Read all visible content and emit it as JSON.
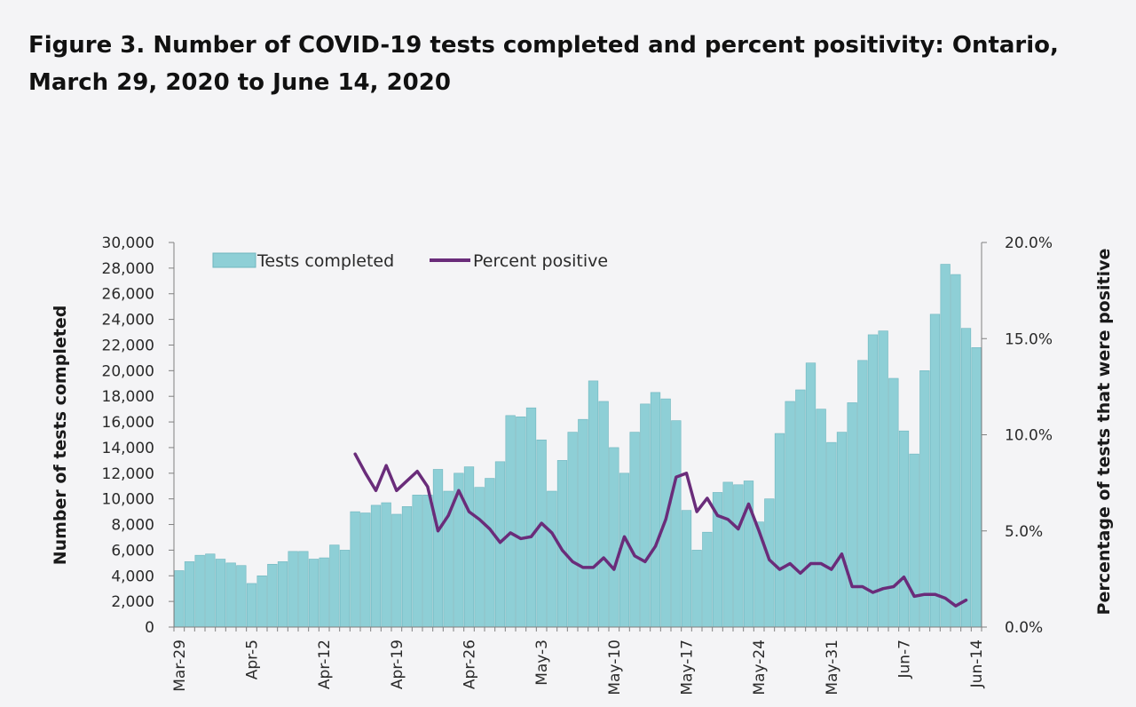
{
  "figure": {
    "title": "Figure 3. Number of COVID-19 tests completed and percent positivity: Ontario, March 29, 2020 to June 14, 2020"
  },
  "colors": {
    "bar_fill": "#8ecfd6",
    "bar_stroke": "#6fb6bf",
    "line": "#6a2c7a",
    "axis": "#808080",
    "background": "#f4f4f6"
  },
  "chart_data": {
    "type": "bar",
    "title": "Figure 3. Number of COVID-19 tests completed and percent positivity: Ontario, March 29, 2020 to June 14, 2020",
    "xlabel": "",
    "ylabel": "Number of tests completed",
    "y2label": "Percentage of tests that were positive",
    "ylim": [
      0,
      30000
    ],
    "y2lim": [
      0,
      20
    ],
    "y_ticks": [
      "0",
      "2,000",
      "4,000",
      "6,000",
      "8,000",
      "10,000",
      "12,000",
      "14,000",
      "16,000",
      "18,000",
      "20,000",
      "22,000",
      "24,000",
      "26,000",
      "28,000",
      "30,000"
    ],
    "y2_ticks": [
      "0.0%",
      "5.0%",
      "10.0%",
      "15.0%",
      "20.0%"
    ],
    "x_tick_labels": [
      {
        "day": 0,
        "label": "Mar-29"
      },
      {
        "day": 7,
        "label": "Apr-5"
      },
      {
        "day": 14,
        "label": "Apr-12"
      },
      {
        "day": 21,
        "label": "Apr-19"
      },
      {
        "day": 28,
        "label": "Apr-26"
      },
      {
        "day": 35,
        "label": "May-3"
      },
      {
        "day": 42,
        "label": "May-10"
      },
      {
        "day": 49,
        "label": "May-17"
      },
      {
        "day": 56,
        "label": "May-24"
      },
      {
        "day": 63,
        "label": "May-31"
      },
      {
        "day": 70,
        "label": "Jun-7"
      },
      {
        "day": 77,
        "label": "Jun-14"
      }
    ],
    "legend": {
      "position": "top-left",
      "entries": [
        "Tests completed",
        "Percent positive"
      ]
    },
    "grid": false,
    "series": [
      {
        "name": "Tests completed",
        "type": "bar",
        "axis": "left",
        "values": [
          4400,
          5100,
          5600,
          5700,
          5300,
          5000,
          4800,
          3400,
          4000,
          4900,
          5100,
          5900,
          5900,
          5300,
          5400,
          6400,
          6000,
          9000,
          8900,
          9500,
          9700,
          8800,
          9400,
          10300,
          10300,
          12300,
          10600,
          12000,
          12500,
          10900,
          11600,
          12900,
          16500,
          16400,
          17100,
          14600,
          10600,
          13000,
          15200,
          16200,
          19200,
          17600,
          14000,
          12000,
          15200,
          17400,
          18300,
          17800,
          16100,
          9100,
          6000,
          7400,
          10500,
          11300,
          11100,
          11400,
          8200,
          10000,
          15100,
          17600,
          18500,
          20600,
          17000,
          14400,
          15200,
          17500,
          20800,
          22800,
          23100,
          19400,
          15300,
          13500,
          20000,
          24400,
          28300,
          27500,
          23300,
          21800
        ]
      },
      {
        "name": "Percent positive",
        "type": "line",
        "axis": "right",
        "start_day": 17,
        "values": [
          9.0,
          8.0,
          7.1,
          8.4,
          7.1,
          7.6,
          8.1,
          7.3,
          5.0,
          5.8,
          7.1,
          6.0,
          5.6,
          5.1,
          4.4,
          4.9,
          4.6,
          4.7,
          5.4,
          4.9,
          4.0,
          3.4,
          3.1,
          3.1,
          3.6,
          3.0,
          4.7,
          3.7,
          3.4,
          4.2,
          5.6,
          7.8,
          8.0,
          6.0,
          6.7,
          5.8,
          5.6,
          5.1,
          6.4,
          5.0,
          3.5,
          3.0,
          3.3,
          2.8,
          3.3,
          3.3,
          3.0,
          3.8,
          2.1,
          2.1,
          1.8,
          2.0,
          2.1,
          2.6,
          1.6,
          1.7,
          1.7,
          1.5,
          1.1,
          1.4
        ]
      }
    ]
  }
}
